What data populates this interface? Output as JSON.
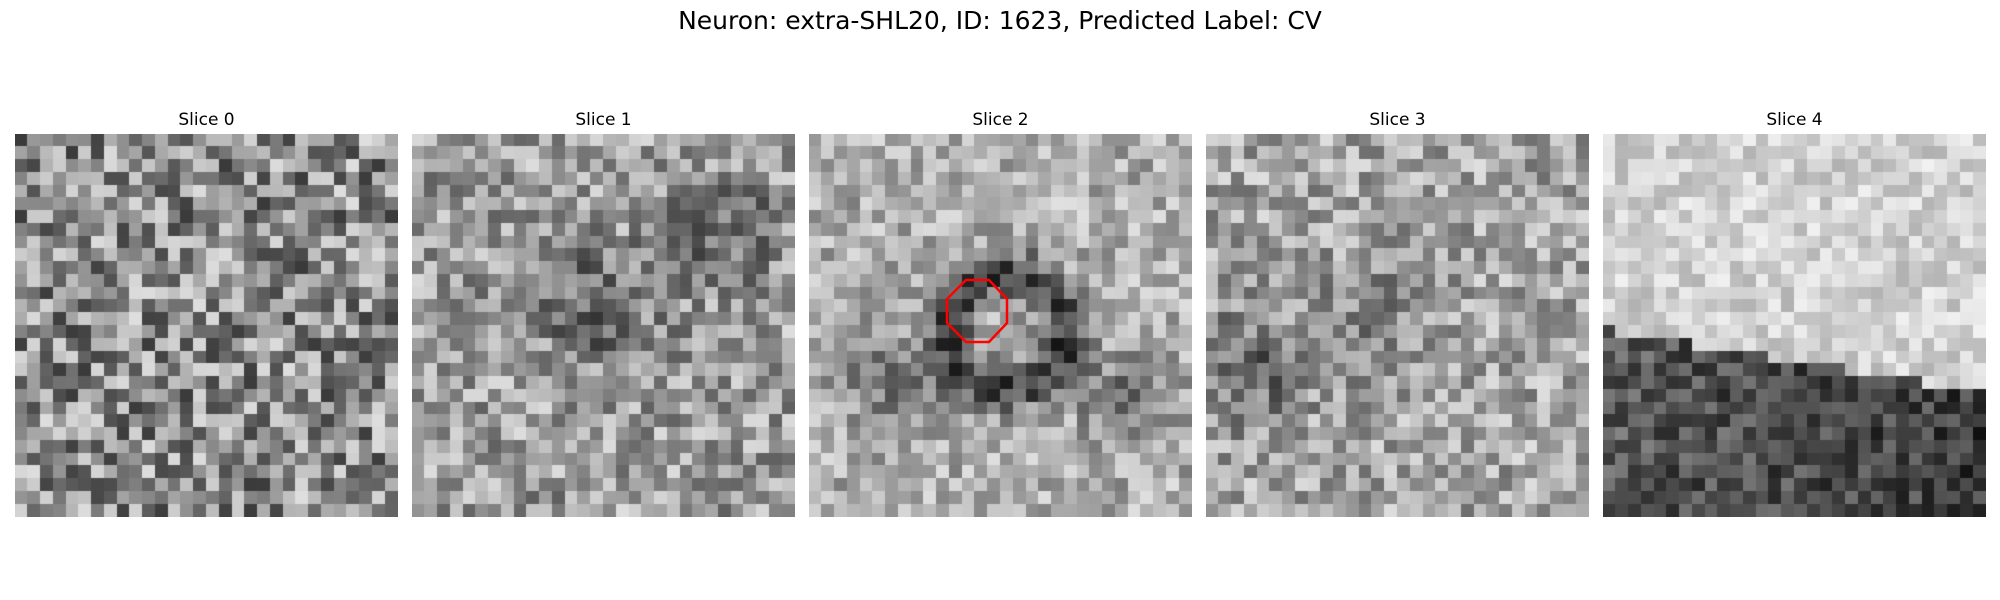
{
  "figure": {
    "title": "Neuron: extra-SHL20, ID: 1623, Predicted Label: CV"
  },
  "panels": [
    {
      "title": "Slice 0"
    },
    {
      "title": "Slice 1"
    },
    {
      "title": "Slice 2"
    },
    {
      "title": "Slice 3"
    },
    {
      "title": "Slice 4"
    }
  ],
  "colors": {
    "background": "#ffffff",
    "roi_outline": "#ff0000",
    "colormap": "grayscale"
  }
}
